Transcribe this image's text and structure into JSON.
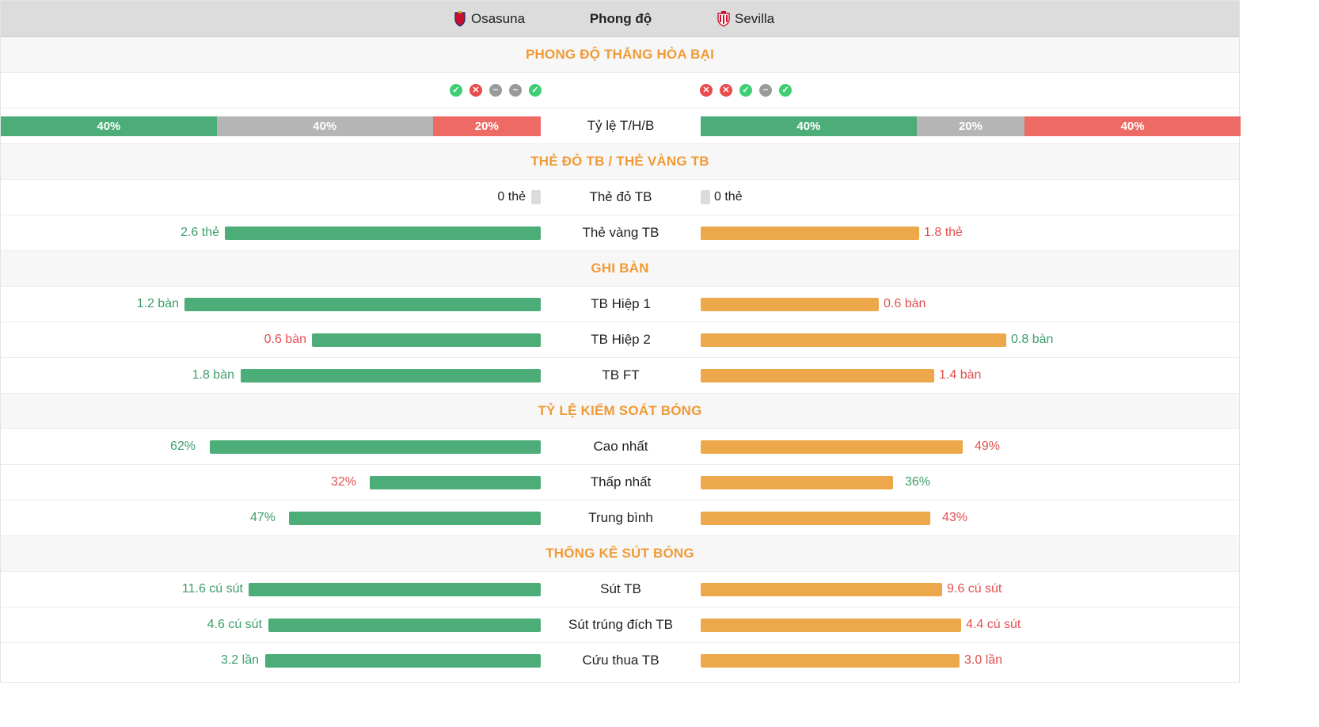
{
  "header": {
    "home_team": "Osasuna",
    "center": "Phong độ",
    "away_team": "Sevilla"
  },
  "sections": {
    "form": "PHONG ĐỘ THẮNG HÒA BẠI",
    "cards": "THẺ ĐỎ TB / THẺ VÀNG TB",
    "goals": "GHI BÀN",
    "possession": "TỶ LỆ KIỂM SOÁT BÓNG",
    "shots": "THỐNG KÊ SÚT BÓNG"
  },
  "form_icons": {
    "home": [
      "win",
      "loss",
      "draw",
      "draw",
      "win"
    ],
    "away": [
      "loss",
      "loss",
      "win",
      "draw",
      "win"
    ]
  },
  "wdl": {
    "label": "Tỷ lệ T/H/B",
    "home": {
      "win": "40%",
      "draw": "40%",
      "loss": "20%",
      "fractions": [
        0.4,
        0.4,
        0.2
      ]
    },
    "away": {
      "win": "40%",
      "draw": "20%",
      "loss": "40%",
      "fractions": [
        0.4,
        0.2,
        0.4
      ]
    },
    "colors": {
      "win": "#4cad78",
      "draw": "#b5b5b5",
      "loss": "#ee6a65"
    }
  },
  "rows": {
    "red_cards": {
      "label": "Thẻ đỏ TB",
      "home": "0 thẻ",
      "away": "0 thẻ"
    },
    "yellow_cards": {
      "label": "Thẻ vàng TB",
      "home": "2.6 thẻ",
      "away": "1.8 thẻ"
    },
    "ht1": {
      "label": "TB Hiệp 1",
      "home": "1.2 bàn",
      "away": "0.6 bàn"
    },
    "ht2": {
      "label": "TB Hiệp 2",
      "home": "0.6 bàn",
      "away": "0.8 bàn"
    },
    "ft": {
      "label": "TB FT",
      "home": "1.8 bàn",
      "away": "1.4 bàn"
    },
    "poss_max": {
      "label": "Cao nhất",
      "home": "62%",
      "away": "49%"
    },
    "poss_min": {
      "label": "Thấp nhất",
      "home": "32%",
      "away": "36%"
    },
    "poss_avg": {
      "label": "Trung bình",
      "home": "47%",
      "away": "43%"
    },
    "shots": {
      "label": "Sút TB",
      "home": "11.6 cú sút",
      "away": "9.6 cú sút"
    },
    "shots_on": {
      "label": "Sút trúng đích TB",
      "home": "4.6 cú sút",
      "away": "4.4 cú sút"
    },
    "saves": {
      "label": "Cứu thua TB",
      "home": "3.2 lần",
      "away": "3.0 lần"
    }
  },
  "colors": {
    "home_bar": "#4cad78",
    "away_bar": "#eca84b",
    "good": "#3c9e6a",
    "bad": "#e44f4f",
    "section_title": "#f09a35"
  }
}
